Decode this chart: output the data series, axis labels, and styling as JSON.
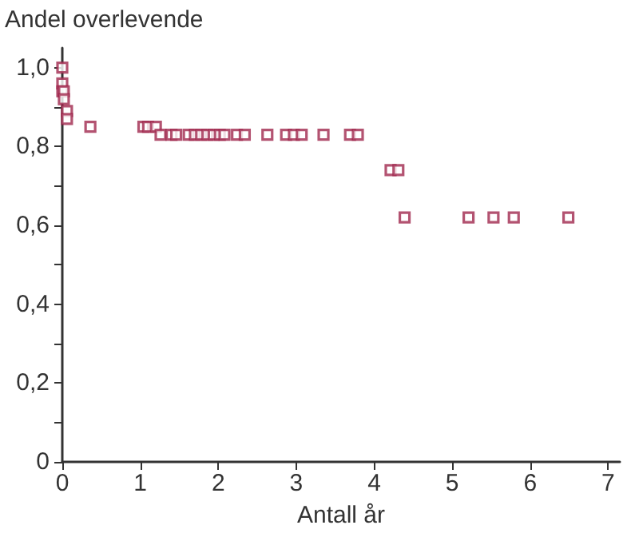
{
  "chart_data": {
    "type": "scatter",
    "ylabel": "Andel overlevende",
    "xlabel": "Antall år",
    "x": [
      0,
      0,
      0,
      0.02,
      0.02,
      0.06,
      0.06,
      0.36,
      1.04,
      1.1,
      1.2,
      1.26,
      1.4,
      1.46,
      1.62,
      1.7,
      1.78,
      1.86,
      1.94,
      2.02,
      2.08,
      2.24,
      2.34,
      2.63,
      2.87,
      2.97,
      3.07,
      3.35,
      3.69,
      3.79,
      4.21,
      4.31,
      4.39,
      5.21,
      5.53,
      5.79,
      6.49
    ],
    "series": [
      {
        "color": "#a0284e",
        "values": [
          1.0,
          0.96,
          0.94,
          0.94,
          0.92,
          0.89,
          0.87,
          0.85,
          0.85,
          0.85,
          0.85,
          0.83,
          0.83,
          0.83,
          0.83,
          0.83,
          0.83,
          0.83,
          0.83,
          0.83,
          0.83,
          0.83,
          0.83,
          0.83,
          0.83,
          0.83,
          0.83,
          0.83,
          0.83,
          0.83,
          0.74,
          0.74,
          0.62,
          0.62,
          0.62,
          0.62,
          0.62
        ]
      }
    ],
    "xlim": [
      0,
      7.15
    ],
    "xticks": [
      0,
      1,
      2,
      3,
      4,
      5,
      6,
      7
    ],
    "ylim": [
      0,
      1.05
    ],
    "yticks": [
      {
        "value": 0,
        "label": "0"
      },
      {
        "value": 0.1,
        "label": null
      },
      {
        "value": 0.2,
        "label": "0,2"
      },
      {
        "value": 0.3,
        "label": null
      },
      {
        "value": 0.4,
        "label": "0,4"
      },
      {
        "value": 0.5,
        "label": null
      },
      {
        "value": 0.6,
        "label": "0,6"
      },
      {
        "value": 0.7,
        "label": null
      },
      {
        "value": 0.8,
        "label": "0,8"
      },
      {
        "value": 0.9,
        "label": null
      },
      {
        "value": 1.0,
        "label": "1,0"
      }
    ],
    "grid": false,
    "marker": "square"
  }
}
